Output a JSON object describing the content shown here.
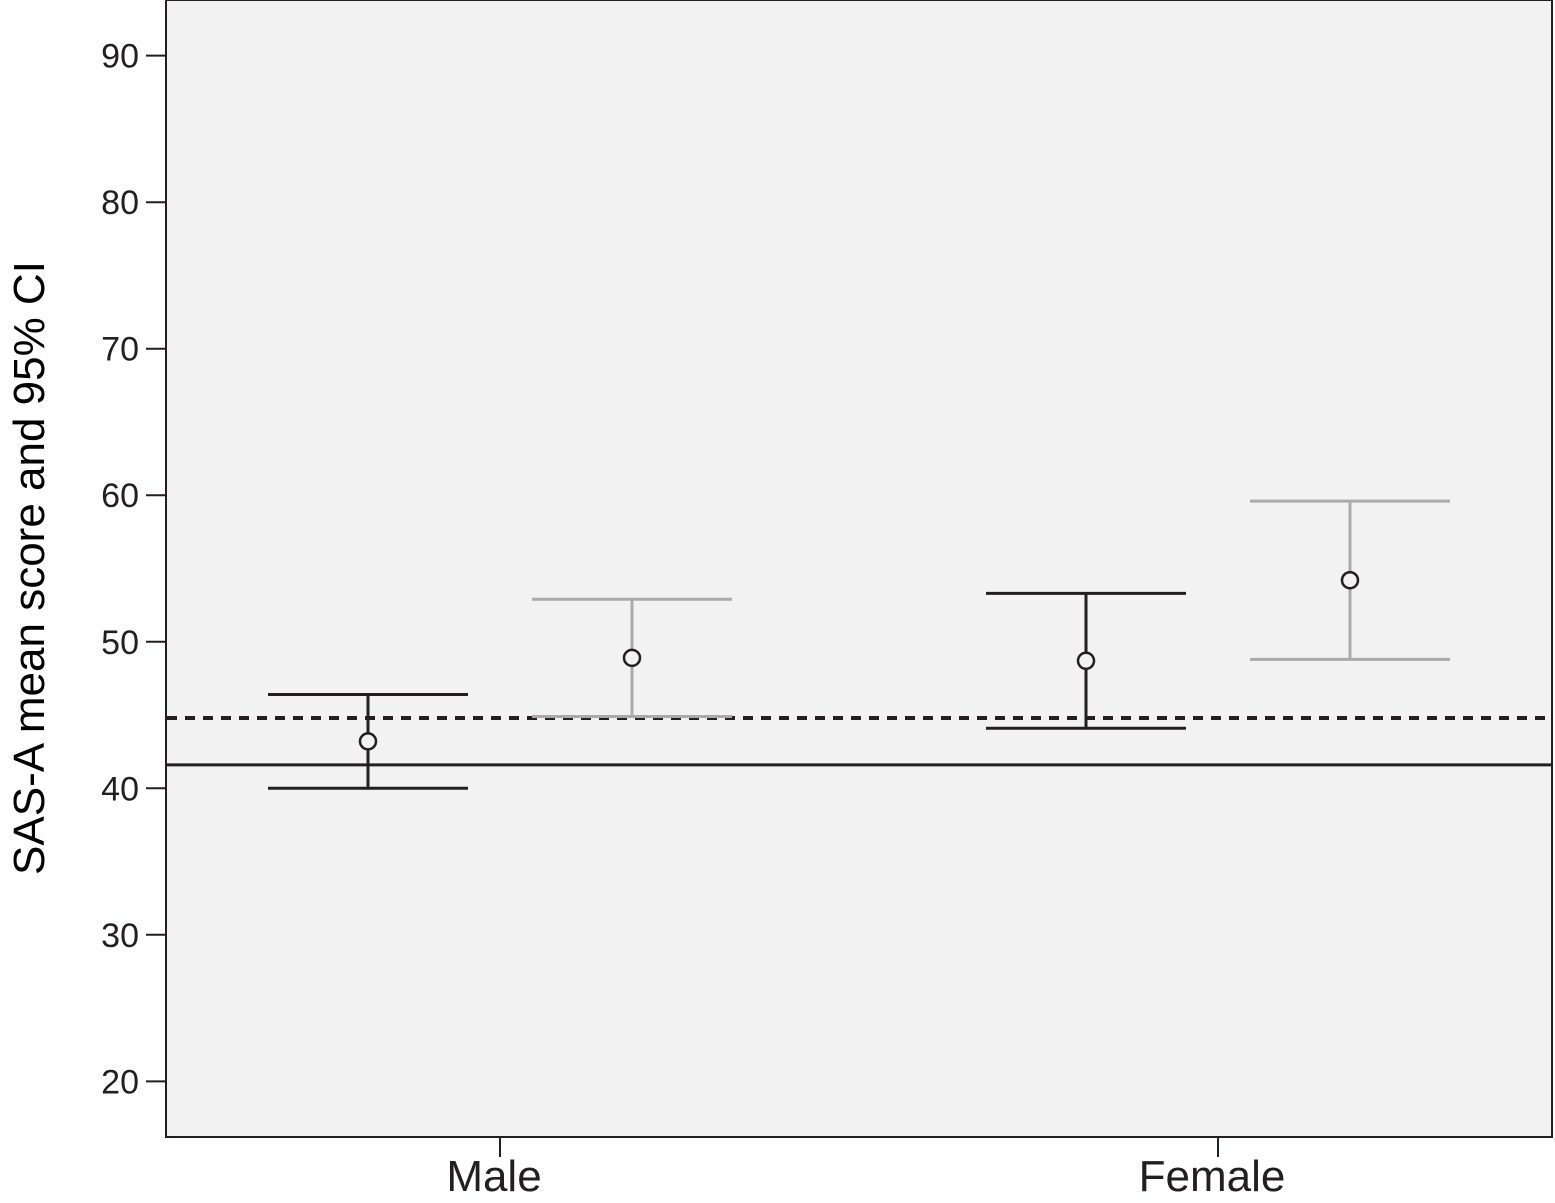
{
  "chart_data": {
    "type": "errorbar",
    "ylabel": "SAS-A mean score and 95% CI",
    "xlabel": "",
    "ylim": [
      16.2,
      93.8
    ],
    "yticks": [
      20,
      30,
      40,
      50,
      60,
      70,
      80,
      90
    ],
    "categories": [
      "Male",
      "Female"
    ],
    "series": [
      {
        "color": "#231f20",
        "points": [
          {
            "category": "Male",
            "mean": 43.2,
            "lower": 40.0,
            "upper": 46.4
          },
          {
            "category": "Female",
            "mean": 48.7,
            "lower": 44.1,
            "upper": 53.3
          }
        ]
      },
      {
        "color": "#aaaaaa",
        "points": [
          {
            "category": "Male",
            "mean": 48.9,
            "lower": 44.9,
            "upper": 52.9
          },
          {
            "category": "Female",
            "mean": 54.2,
            "lower": 48.8,
            "upper": 59.6
          }
        ]
      }
    ],
    "reference_lines": [
      {
        "y": 44.8,
        "style": "dotted",
        "color": "#231f20"
      },
      {
        "y": 41.6,
        "style": "solid",
        "color": "#231f20"
      }
    ],
    "grid": false,
    "background": "#f2f2f2"
  }
}
